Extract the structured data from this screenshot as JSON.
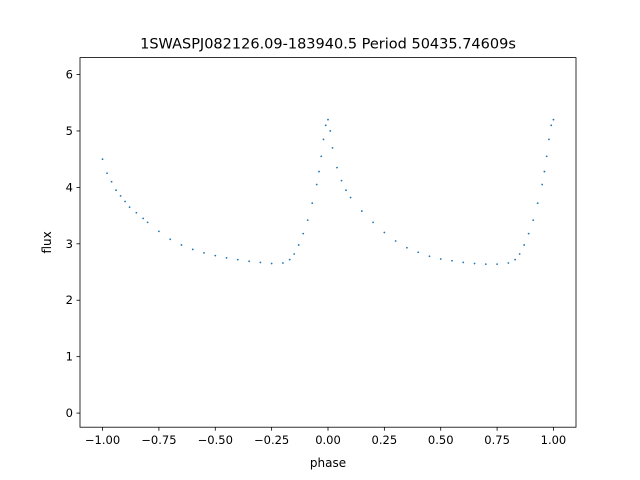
{
  "chart_data": {
    "type": "scatter",
    "title": "1SWASPJ082126.09-183940.5 Period 50435.74609s",
    "xlabel": "phase",
    "ylabel": "flux",
    "xlim": [
      -1.1,
      1.1
    ],
    "ylim": [
      -0.25,
      6.3
    ],
    "x_ticks": [
      -1.0,
      -0.75,
      -0.5,
      -0.25,
      0.0,
      0.25,
      0.5,
      0.75,
      1.0
    ],
    "x_tick_labels": [
      "−1.00",
      "−0.75",
      "−0.50",
      "−0.25",
      "0.00",
      "0.25",
      "0.50",
      "0.75",
      "1.00"
    ],
    "y_ticks": [
      0,
      1,
      2,
      3,
      4,
      5,
      6
    ],
    "y_tick_labels": [
      "0",
      "1",
      "2",
      "3",
      "4",
      "5",
      "6"
    ],
    "grid": false,
    "legend": "none",
    "marker_color": "#1f77b4",
    "series": [
      {
        "x": [
          -1.0,
          -0.98,
          -0.96,
          -0.94,
          -0.92,
          -0.9,
          -0.88,
          -0.85,
          -0.82,
          -0.8,
          -0.75,
          -0.7,
          -0.65,
          -0.6,
          -0.55,
          -0.5,
          -0.45,
          -0.4,
          -0.35,
          -0.3,
          -0.25,
          -0.2,
          -0.17,
          -0.15,
          -0.13,
          -0.11,
          -0.09,
          -0.07,
          -0.05,
          -0.04,
          -0.03,
          -0.02,
          -0.01,
          0.0,
          0.01,
          0.02,
          0.04,
          0.06,
          0.08,
          0.1,
          0.15,
          0.2,
          0.25,
          0.3,
          0.35,
          0.4,
          0.45,
          0.5,
          0.55,
          0.6,
          0.65,
          0.7,
          0.75,
          0.8,
          0.83,
          0.85,
          0.87,
          0.89,
          0.91,
          0.93,
          0.95,
          0.96,
          0.97,
          0.98,
          0.99,
          1.0
        ],
        "y": [
          4.5,
          4.25,
          4.1,
          3.95,
          3.85,
          3.75,
          3.65,
          3.55,
          3.45,
          3.38,
          3.22,
          3.08,
          2.98,
          2.9,
          2.84,
          2.79,
          2.75,
          2.72,
          2.69,
          2.67,
          2.65,
          2.66,
          2.72,
          2.82,
          2.98,
          3.18,
          3.42,
          3.72,
          4.05,
          4.28,
          4.55,
          4.85,
          5.1,
          5.2,
          5.0,
          4.7,
          4.35,
          4.12,
          3.95,
          3.82,
          3.58,
          3.38,
          3.2,
          3.05,
          2.93,
          2.85,
          2.78,
          2.73,
          2.7,
          2.67,
          2.65,
          2.64,
          2.64,
          2.66,
          2.72,
          2.82,
          2.98,
          3.18,
          3.42,
          3.72,
          4.05,
          4.28,
          4.55,
          4.85,
          5.1,
          5.2
        ]
      }
    ]
  }
}
